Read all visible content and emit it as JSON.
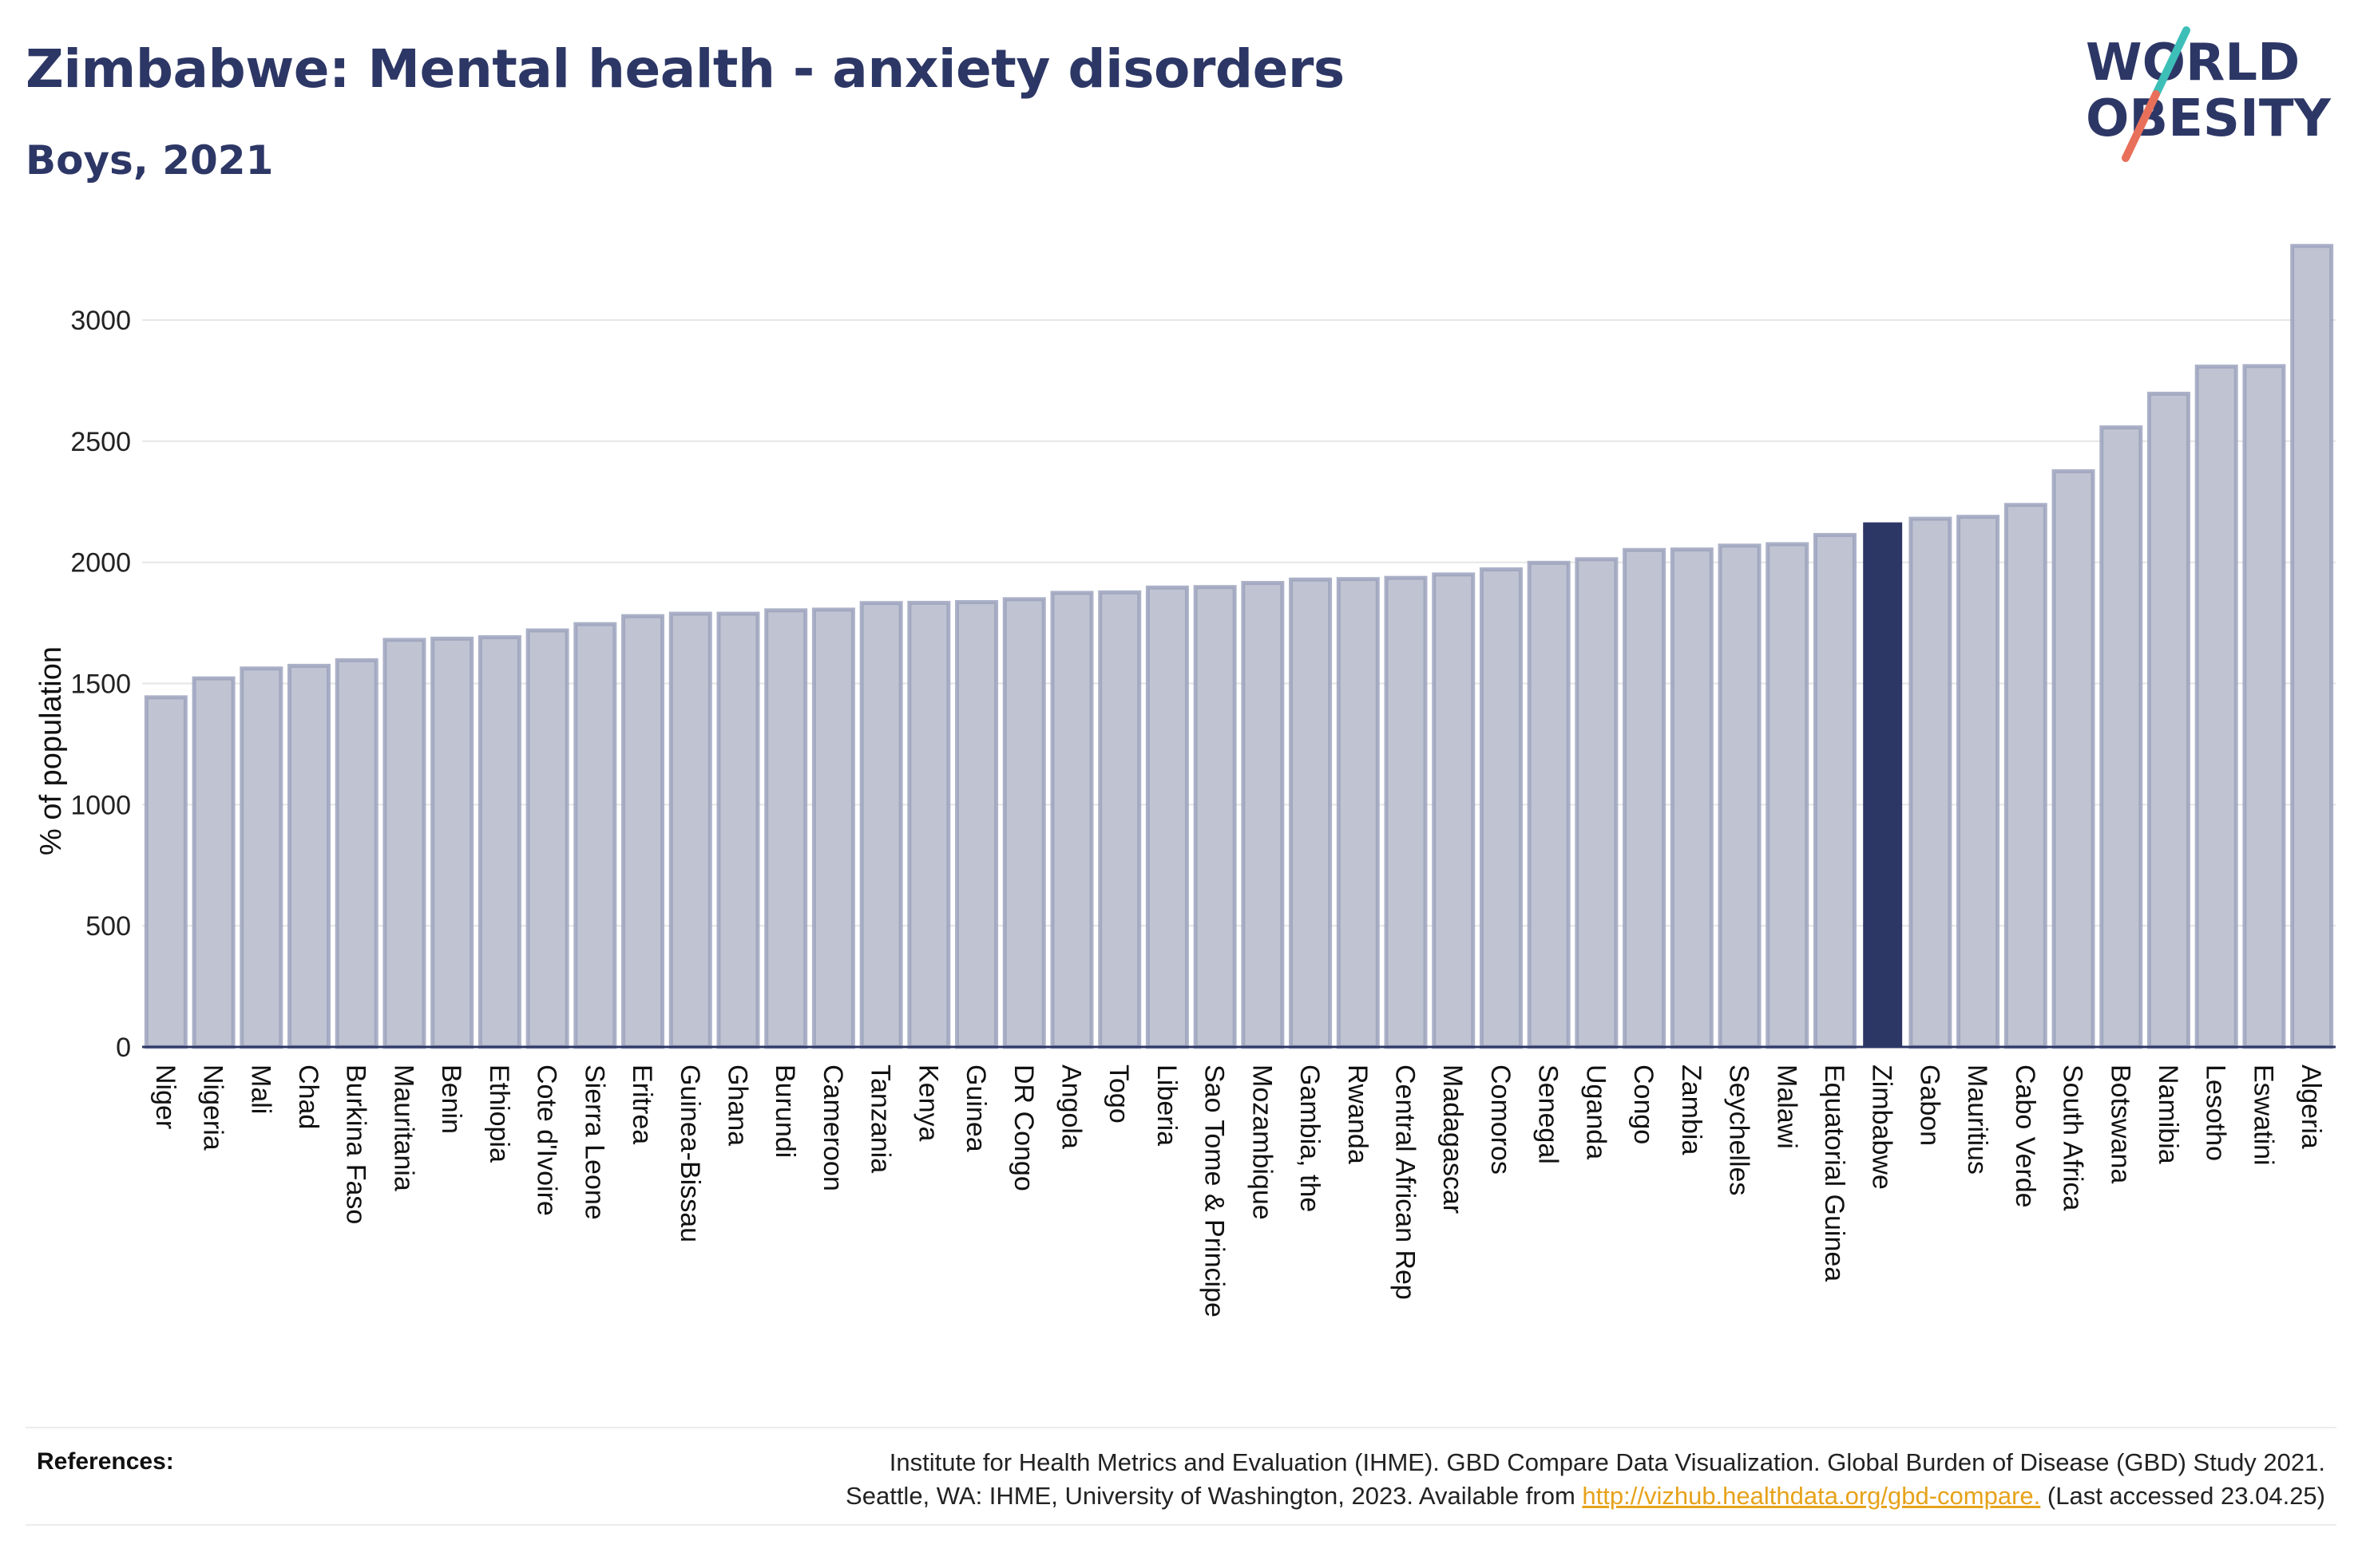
{
  "header": {
    "title": "Zimbabwe: Mental health - anxiety disorders",
    "subtitle": "Boys, 2021"
  },
  "logo": {
    "line1": "WORLD",
    "line2": "OBESITY",
    "colors": {
      "text": "#2d3766",
      "slash_top": "#3dbfb8",
      "slash_bottom": "#e8705a"
    }
  },
  "references": {
    "label": "References:",
    "line1": "Institute for Health Metrics and Evaluation (IHME). GBD Compare Data Visualization. Global Burden of Disease (GBD) Study 2021.",
    "line2_prefix": "Seattle, WA: IHME, University of Washington, 2023. Available from ",
    "link": "http://vizhub.healthdata.org/gbd-compare.",
    "line2_suffix": " (Last accessed 23.04.25)"
  },
  "chart_data": {
    "type": "bar",
    "ylabel": "% of population",
    "ylim": [
      0,
      3300
    ],
    "yticks": [
      0,
      500,
      1000,
      1500,
      2000,
      2500,
      3000
    ],
    "grid": true,
    "highlight": "Zimbabwe",
    "colors": {
      "bar": "#c0c4d2",
      "bar_border": "#9ca3bd",
      "highlight": "#2d3766",
      "grid": "#e6e6e6",
      "axis": "#2d3766"
    },
    "categories": [
      "Niger",
      "Nigeria",
      "Mali",
      "Chad",
      "Burkina Faso",
      "Mauritania",
      "Benin",
      "Ethiopia",
      "Cote d'Ivoire",
      "Sierra Leone",
      "Eritrea",
      "Guinea-Bissau",
      "Ghana",
      "Burundi",
      "Cameroon",
      "Tanzania",
      "Kenya",
      "Guinea",
      "DR Congo",
      "Angola",
      "Togo",
      "Liberia",
      "Sao Tome & Principe",
      "Mozambique",
      "Gambia, the",
      "Rwanda",
      "Central African Rep",
      "Madagascar",
      "Comoros",
      "Senegal",
      "Uganda",
      "Congo",
      "Zambia",
      "Seychelles",
      "Malawi",
      "Equatorial Guinea",
      "Zimbabwe",
      "Gabon",
      "Mauritius",
      "Cabo Verde",
      "South Africa",
      "Botswana",
      "Namibia",
      "Lesotho",
      "Eswatini",
      "Algeria"
    ],
    "values": [
      1443,
      1521,
      1562,
      1573,
      1596,
      1680,
      1685,
      1691,
      1719,
      1745,
      1778,
      1788,
      1788,
      1802,
      1805,
      1832,
      1833,
      1836,
      1848,
      1874,
      1876,
      1896,
      1898,
      1915,
      1929,
      1931,
      1936,
      1950,
      1971,
      1998,
      2013,
      2051,
      2053,
      2069,
      2075,
      2113,
      2165,
      2180,
      2188,
      2237,
      2376,
      2557,
      2696,
      2808,
      2810,
      3306
    ]
  }
}
